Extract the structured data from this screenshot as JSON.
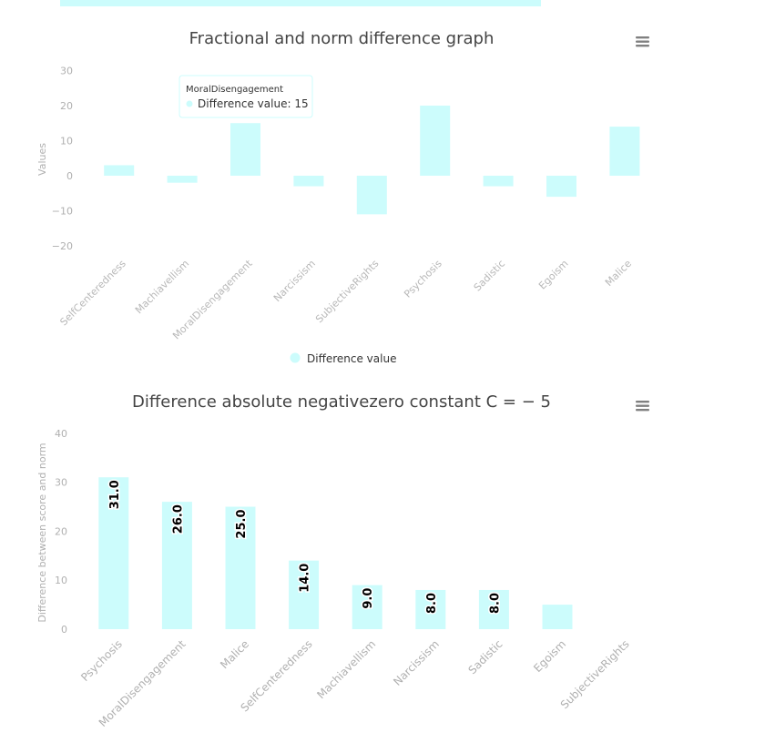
{
  "colors": {
    "bar": "#ccfcfc",
    "band": "#ccfcfc",
    "menu": "#808080",
    "tooltip_border": "#ccfcfc"
  },
  "icons": {
    "menu": "hamburger-menu-icon"
  },
  "chart_data": [
    {
      "type": "bar",
      "title": "Fractional and norm difference graph",
      "ylabel": "Values",
      "xlabel": "",
      "ylim": [
        -20,
        30
      ],
      "yticks": [
        30,
        20,
        10,
        0,
        -10,
        -20
      ],
      "ytick_labels": [
        "30",
        "20",
        "10",
        "0",
        "−10",
        "−20"
      ],
      "categories": [
        "SelfCenteredness",
        "Machiavellism",
        "MoralDisengagement",
        "Narcissism",
        "SubjectiveRights",
        "Psychosis",
        "Sadistic",
        "Egoism",
        "Malice"
      ],
      "series": [
        {
          "name": "Difference value",
          "values": [
            3,
            -2,
            15,
            -3,
            -11,
            20,
            -3,
            -6,
            14
          ]
        }
      ],
      "legend": "bottom-center",
      "tooltip": {
        "category": "MoralDisengagement",
        "text": "Difference value: 15"
      }
    },
    {
      "type": "bar",
      "title": "Difference absolute negativezero constant C = − 5",
      "ylabel": "Difference between score and norm",
      "xlabel": "",
      "ylim": [
        0,
        40
      ],
      "yticks": [
        40,
        30,
        20,
        10,
        0
      ],
      "ytick_labels": [
        "40",
        "30",
        "20",
        "10",
        "0"
      ],
      "categories": [
        "Psychosis",
        "MoralDisengagement",
        "Malice",
        "SelfCenteredness",
        "Machiavellism",
        "Narcissism",
        "Sadistic",
        "Egoism",
        "SubjectiveRights"
      ],
      "series": [
        {
          "name": "Difference",
          "values": [
            31,
            26,
            25,
            14,
            9,
            8,
            8,
            5,
            0
          ]
        }
      ],
      "data_labels": [
        "31.0",
        "26.0",
        "25.0",
        "14.0",
        "9.0",
        "8.0",
        "8.0",
        "",
        ""
      ],
      "legend": "none"
    }
  ]
}
